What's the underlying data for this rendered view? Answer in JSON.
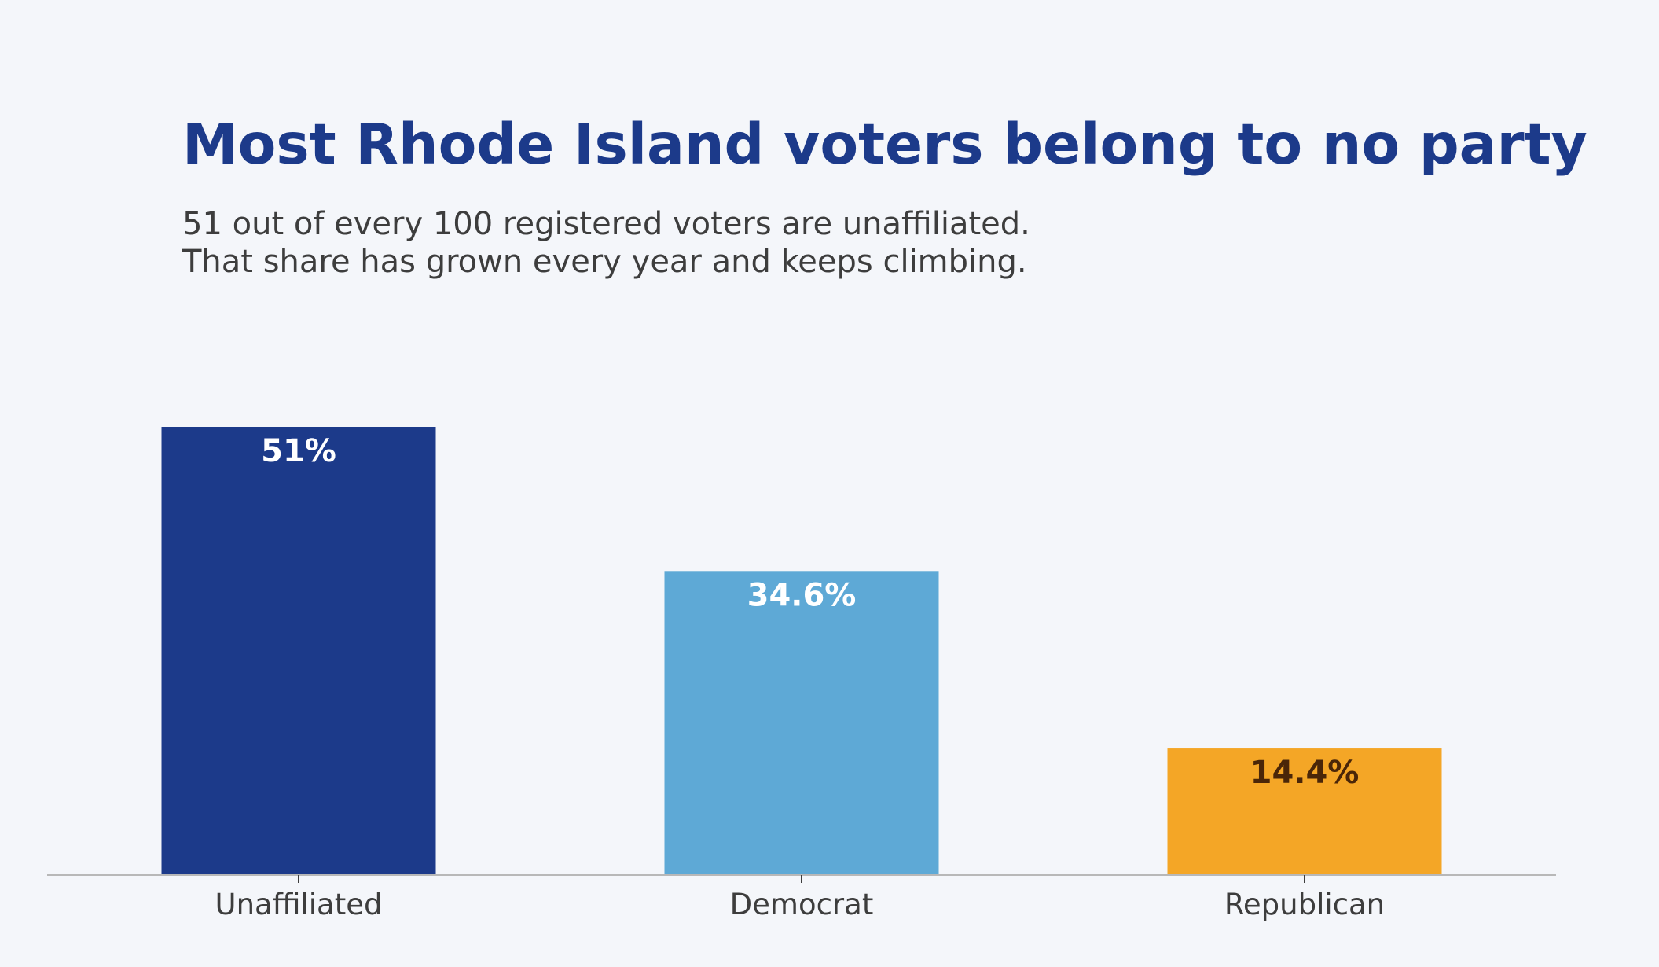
{
  "chart_data": {
    "type": "bar",
    "title": "Most Rhode Island voters belong to no party",
    "subtitle": [
      "51 out of every 100 registered voters are unaffiliated.",
      "That share has grown every year and keeps climbing."
    ],
    "categories": [
      "Unaffiliated",
      "Democrat",
      "Republican"
    ],
    "values": [
      51,
      34.6,
      14.4
    ],
    "data_labels": [
      "51%",
      "34.6%",
      "14.4%"
    ],
    "bar_colors": [
      "#1c3a8a",
      "#5ea9d6",
      "#f4a626"
    ],
    "label_colors": [
      "#ffffff",
      "#ffffff",
      "#4a2608"
    ],
    "xlabel": "",
    "ylabel": "",
    "ylim": [
      0,
      51
    ],
    "grid": false,
    "legend": "none",
    "y_axis_visible": false
  }
}
